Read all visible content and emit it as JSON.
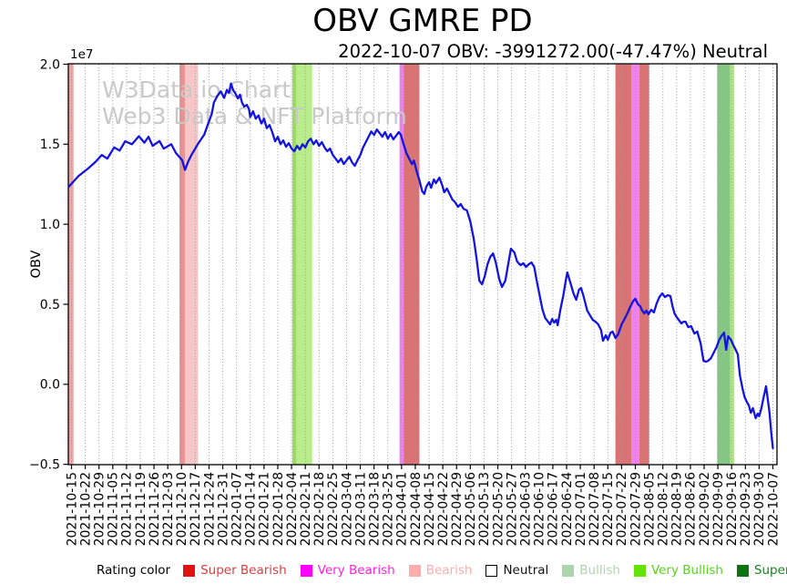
{
  "header": {
    "title": "OBV GMRE PD",
    "subtitle": "2022-10-07 OBV: -3991272.00(-47.47%) Neutral"
  },
  "watermark": {
    "line1": "W3Data.io Chart",
    "line2": "Web3 Data & NFT Platform"
  },
  "legend": {
    "label": "Rating color",
    "items": [
      {
        "name": "super-bearish",
        "label": "Super Bearish",
        "swatch_color": "#e01212",
        "text_color": "#d94040",
        "border": "#e01212"
      },
      {
        "name": "very-bearish",
        "label": "Very Bearish",
        "swatch_color": "#ff00ff",
        "text_color": "#ff22dd",
        "border": "#ff00ff"
      },
      {
        "name": "bearish",
        "label": "Bearish",
        "swatch_color": "#ffacac",
        "text_color": "#ffacac",
        "border": "#ffacac"
      },
      {
        "name": "neutral",
        "label": "Neutral",
        "swatch_color": "#ffffff",
        "text_color": "#111111",
        "border": "#000000"
      },
      {
        "name": "bullish",
        "label": "Bullish",
        "swatch_color": "#abd6ab",
        "text_color": "#aed4ae",
        "border": "#abd6ab"
      },
      {
        "name": "very-bullish",
        "label": "Very Bullish",
        "swatch_color": "#64e30b",
        "text_color": "#58d41c",
        "border": "#64e30b"
      },
      {
        "name": "super-bullish",
        "label": "Super Bullish",
        "swatch_color": "#0c7512",
        "text_color": "#19821f",
        "border": "#0c7512"
      }
    ]
  },
  "chart_data": {
    "type": "line",
    "title": "OBV GMRE PD",
    "ylabel": "OBV",
    "y_offset_label": "1e7",
    "line_color": "#1414e0",
    "grid": true,
    "ylim": [
      -0.5,
      2.0
    ],
    "yticks": [
      2.0,
      1.5,
      1.0,
      0.5,
      0.0,
      -0.5
    ],
    "ytick_labels": [
      "2.0",
      "1.5",
      "1.0",
      "0.5",
      "0.0",
      "−0.5"
    ],
    "x_tick_labels": [
      "2021-10-15",
      "2021-10-22",
      "2021-10-29",
      "2021-11-05",
      "2021-11-12",
      "2021-11-19",
      "2021-11-26",
      "2021-12-03",
      "2021-12-10",
      "2021-12-17",
      "2021-12-24",
      "2021-12-31",
      "2022-01-07",
      "2022-01-14",
      "2022-01-21",
      "2022-01-28",
      "2022-02-04",
      "2022-02-11",
      "2022-02-18",
      "2022-02-25",
      "2022-03-04",
      "2022-03-11",
      "2022-03-18",
      "2022-03-25",
      "2022-04-01",
      "2022-04-08",
      "2022-04-15",
      "2022-04-22",
      "2022-04-29",
      "2022-05-06",
      "2022-05-13",
      "2022-05-20",
      "2022-05-27",
      "2022-06-03",
      "2022-06-10",
      "2022-06-17",
      "2022-06-24",
      "2022-07-01",
      "2022-07-08",
      "2022-07-15",
      "2022-07-22",
      "2022-07-29",
      "2022-08-05",
      "2022-08-12",
      "2022-08-19",
      "2022-08-26",
      "2022-09-02",
      "2022-09-09",
      "2022-09-16",
      "2022-09-23",
      "2022-09-30",
      "2022-10-07"
    ],
    "bands": [
      {
        "from": -0.25,
        "to": 0.15,
        "rating": "bearish",
        "color": "#f2a5a5"
      },
      {
        "from": 7.85,
        "to": 8.25,
        "rating": "bearish",
        "color": "#e89494"
      },
      {
        "from": 8.25,
        "to": 9.2,
        "rating": "bearish",
        "color": "#f7c6c6"
      },
      {
        "from": 16.05,
        "to": 16.35,
        "rating": "very-bullish",
        "color": "#9cd968"
      },
      {
        "from": 16.35,
        "to": 17.5,
        "rating": "very-bullish",
        "color": "#b9ec8a"
      },
      {
        "from": 23.85,
        "to": 24.15,
        "rating": "very-bearish",
        "color": "#ee82ee"
      },
      {
        "from": 24.15,
        "to": 25.3,
        "rating": "super-bearish",
        "color": "#da7474"
      },
      {
        "from": 39.55,
        "to": 40.7,
        "rating": "super-bearish",
        "color": "#da7474"
      },
      {
        "from": 40.7,
        "to": 41.3,
        "rating": "very-bearish",
        "color": "#ee82ee"
      },
      {
        "from": 41.3,
        "to": 42.0,
        "rating": "super-bearish",
        "color": "#da7474"
      },
      {
        "from": 46.95,
        "to": 47.9,
        "rating": "super-bullish",
        "color": "#85c685"
      },
      {
        "from": 47.9,
        "to": 48.2,
        "rating": "very-bullish",
        "color": "#b2e687"
      }
    ],
    "series": [
      {
        "name": "OBV",
        "unit": "1e7",
        "points": [
          [
            -0.2,
            1.234
          ],
          [
            0.5,
            1.3
          ],
          [
            1.2,
            1.348
          ],
          [
            1.75,
            1.39
          ],
          [
            2.2,
            1.433
          ],
          [
            2.6,
            1.41
          ],
          [
            3.1,
            1.48
          ],
          [
            3.5,
            1.46
          ],
          [
            3.9,
            1.518
          ],
          [
            4.4,
            1.5
          ],
          [
            4.9,
            1.55
          ],
          [
            5.3,
            1.51
          ],
          [
            5.6,
            1.547
          ],
          [
            5.9,
            1.49
          ],
          [
            6.4,
            1.52
          ],
          [
            6.7,
            1.473
          ],
          [
            7.25,
            1.5
          ],
          [
            7.6,
            1.445
          ],
          [
            8.05,
            1.4
          ],
          [
            8.25,
            1.34
          ],
          [
            8.5,
            1.395
          ],
          [
            8.7,
            1.43
          ],
          [
            9.25,
            1.51
          ],
          [
            9.65,
            1.56
          ],
          [
            9.9,
            1.62
          ],
          [
            10.2,
            1.69
          ],
          [
            10.35,
            1.76
          ],
          [
            10.6,
            1.8
          ],
          [
            10.85,
            1.83
          ],
          [
            11.1,
            1.79
          ],
          [
            11.3,
            1.84
          ],
          [
            11.45,
            1.82
          ],
          [
            11.6,
            1.879
          ],
          [
            11.75,
            1.838
          ],
          [
            11.9,
            1.82
          ],
          [
            12.1,
            1.786
          ],
          [
            12.25,
            1.81
          ],
          [
            12.4,
            1.76
          ],
          [
            12.55,
            1.735
          ],
          [
            12.75,
            1.746
          ],
          [
            12.9,
            1.72
          ],
          [
            13.0,
            1.67
          ],
          [
            13.2,
            1.706
          ],
          [
            13.4,
            1.66
          ],
          [
            13.6,
            1.68
          ],
          [
            13.8,
            1.63
          ],
          [
            14.0,
            1.66
          ],
          [
            14.2,
            1.6
          ],
          [
            14.4,
            1.62
          ],
          [
            14.6,
            1.576
          ],
          [
            14.8,
            1.518
          ],
          [
            15.0,
            1.547
          ],
          [
            15.2,
            1.5
          ],
          [
            15.4,
            1.524
          ],
          [
            15.6,
            1.484
          ],
          [
            15.8,
            1.507
          ],
          [
            16.0,
            1.473
          ],
          [
            16.2,
            1.456
          ],
          [
            16.4,
            1.49
          ],
          [
            16.6,
            1.467
          ],
          [
            16.8,
            1.5
          ],
          [
            17.0,
            1.48
          ],
          [
            17.2,
            1.518
          ],
          [
            17.4,
            1.535
          ],
          [
            17.6,
            1.5
          ],
          [
            17.8,
            1.524
          ],
          [
            18.0,
            1.49
          ],
          [
            18.2,
            1.513
          ],
          [
            18.4,
            1.48
          ],
          [
            18.6,
            1.456
          ],
          [
            18.8,
            1.473
          ],
          [
            19.0,
            1.433
          ],
          [
            19.2,
            1.41
          ],
          [
            19.4,
            1.387
          ],
          [
            19.6,
            1.41
          ],
          [
            19.8,
            1.376
          ],
          [
            20.0,
            1.4
          ],
          [
            20.2,
            1.422
          ],
          [
            20.4,
            1.387
          ],
          [
            20.6,
            1.365
          ],
          [
            20.8,
            1.4
          ],
          [
            21.0,
            1.433
          ],
          [
            21.2,
            1.48
          ],
          [
            21.4,
            1.513
          ],
          [
            21.6,
            1.547
          ],
          [
            21.8,
            1.58
          ],
          [
            22.0,
            1.558
          ],
          [
            22.2,
            1.592
          ],
          [
            22.4,
            1.57
          ],
          [
            22.6,
            1.547
          ],
          [
            22.8,
            1.576
          ],
          [
            23.0,
            1.535
          ],
          [
            23.2,
            1.564
          ],
          [
            23.4,
            1.53
          ],
          [
            23.6,
            1.553
          ],
          [
            23.8,
            1.576
          ],
          [
            23.95,
            1.558
          ],
          [
            24.15,
            1.5
          ],
          [
            24.35,
            1.445
          ],
          [
            24.55,
            1.41
          ],
          [
            24.75,
            1.376
          ],
          [
            24.9,
            1.398
          ],
          [
            25.1,
            1.33
          ],
          [
            25.3,
            1.274
          ],
          [
            25.5,
            1.206
          ],
          [
            25.65,
            1.19
          ],
          [
            25.8,
            1.234
          ],
          [
            26.0,
            1.263
          ],
          [
            26.15,
            1.228
          ],
          [
            26.35,
            1.28
          ],
          [
            26.5,
            1.257
          ],
          [
            26.75,
            1.291
          ],
          [
            26.95,
            1.245
          ],
          [
            27.1,
            1.2
          ],
          [
            27.3,
            1.223
          ],
          [
            27.5,
            1.188
          ],
          [
            27.7,
            1.154
          ],
          [
            27.9,
            1.137
          ],
          [
            28.1,
            1.109
          ],
          [
            28.3,
            1.126
          ],
          [
            28.5,
            1.097
          ],
          [
            28.75,
            1.086
          ],
          [
            29.0,
            1.018
          ],
          [
            29.25,
            0.909
          ],
          [
            29.45,
            0.79
          ],
          [
            29.65,
            0.648
          ],
          [
            29.85,
            0.625
          ],
          [
            30.05,
            0.676
          ],
          [
            30.25,
            0.75
          ],
          [
            30.45,
            0.796
          ],
          [
            30.65,
            0.818
          ],
          [
            30.85,
            0.761
          ],
          [
            31.1,
            0.659
          ],
          [
            31.3,
            0.608
          ],
          [
            31.55,
            0.648
          ],
          [
            31.75,
            0.75
          ],
          [
            31.95,
            0.847
          ],
          [
            32.2,
            0.824
          ],
          [
            32.4,
            0.767
          ],
          [
            32.65,
            0.744
          ],
          [
            32.85,
            0.756
          ],
          [
            33.05,
            0.733
          ],
          [
            33.25,
            0.75
          ],
          [
            33.45,
            0.761
          ],
          [
            33.65,
            0.733
          ],
          [
            33.85,
            0.636
          ],
          [
            34.05,
            0.551
          ],
          [
            34.25,
            0.466
          ],
          [
            34.45,
            0.414
          ],
          [
            34.65,
            0.391
          ],
          [
            34.8,
            0.374
          ],
          [
            34.95,
            0.409
          ],
          [
            35.1,
            0.386
          ],
          [
            35.25,
            0.403
          ],
          [
            35.35,
            0.369
          ],
          [
            35.55,
            0.466
          ],
          [
            35.75,
            0.551
          ],
          [
            35.95,
            0.653
          ],
          [
            36.05,
            0.699
          ],
          [
            36.25,
            0.642
          ],
          [
            36.5,
            0.568
          ],
          [
            36.7,
            0.528
          ],
          [
            36.9,
            0.591
          ],
          [
            37.05,
            0.602
          ],
          [
            37.25,
            0.545
          ],
          [
            37.5,
            0.46
          ],
          [
            37.7,
            0.431
          ],
          [
            37.9,
            0.403
          ],
          [
            38.1,
            0.391
          ],
          [
            38.3,
            0.374
          ],
          [
            38.5,
            0.34
          ],
          [
            38.65,
            0.272
          ],
          [
            38.85,
            0.306
          ],
          [
            39.0,
            0.278
          ],
          [
            39.2,
            0.323
          ],
          [
            39.35,
            0.329
          ],
          [
            39.55,
            0.289
          ],
          [
            39.75,
            0.312
          ],
          [
            40.0,
            0.374
          ],
          [
            40.25,
            0.414
          ],
          [
            40.45,
            0.449
          ],
          [
            40.65,
            0.488
          ],
          [
            40.85,
            0.522
          ],
          [
            41.0,
            0.534
          ],
          [
            41.2,
            0.5
          ],
          [
            41.35,
            0.488
          ],
          [
            41.5,
            0.46
          ],
          [
            41.65,
            0.443
          ],
          [
            41.8,
            0.46
          ],
          [
            41.95,
            0.437
          ],
          [
            42.15,
            0.466
          ],
          [
            42.35,
            0.449
          ],
          [
            42.55,
            0.505
          ],
          [
            42.75,
            0.545
          ],
          [
            42.95,
            0.568
          ],
          [
            43.15,
            0.545
          ],
          [
            43.35,
            0.557
          ],
          [
            43.55,
            0.551
          ],
          [
            43.7,
            0.488
          ],
          [
            43.85,
            0.443
          ],
          [
            44.0,
            0.42
          ],
          [
            44.15,
            0.403
          ],
          [
            44.35,
            0.38
          ],
          [
            44.5,
            0.391
          ],
          [
            44.65,
            0.391
          ],
          [
            44.85,
            0.357
          ],
          [
            45.05,
            0.363
          ],
          [
            45.3,
            0.317
          ],
          [
            45.5,
            0.329
          ],
          [
            45.75,
            0.255
          ],
          [
            45.95,
            0.147
          ],
          [
            46.15,
            0.141
          ],
          [
            46.3,
            0.147
          ],
          [
            46.5,
            0.164
          ],
          [
            46.7,
            0.198
          ],
          [
            46.9,
            0.232
          ],
          [
            47.1,
            0.278
          ],
          [
            47.25,
            0.3
          ],
          [
            47.45,
            0.323
          ],
          [
            47.6,
            0.215
          ],
          [
            47.75,
            0.3
          ],
          [
            47.95,
            0.278
          ],
          [
            48.1,
            0.249
          ],
          [
            48.3,
            0.215
          ],
          [
            48.45,
            0.187
          ],
          [
            48.6,
            0.056
          ],
          [
            48.8,
            -0.03
          ],
          [
            48.95,
            -0.081
          ],
          [
            49.1,
            -0.109
          ],
          [
            49.25,
            -0.132
          ],
          [
            49.4,
            -0.178
          ],
          [
            49.55,
            -0.149
          ],
          [
            49.75,
            -0.212
          ],
          [
            49.9,
            -0.183
          ],
          [
            50.0,
            -0.2
          ],
          [
            50.15,
            -0.155
          ],
          [
            50.3,
            -0.092
          ],
          [
            50.5,
            -0.012
          ],
          [
            50.75,
            -0.172
          ],
          [
            50.9,
            -0.32
          ],
          [
            51.0,
            -0.399
          ]
        ]
      }
    ]
  }
}
